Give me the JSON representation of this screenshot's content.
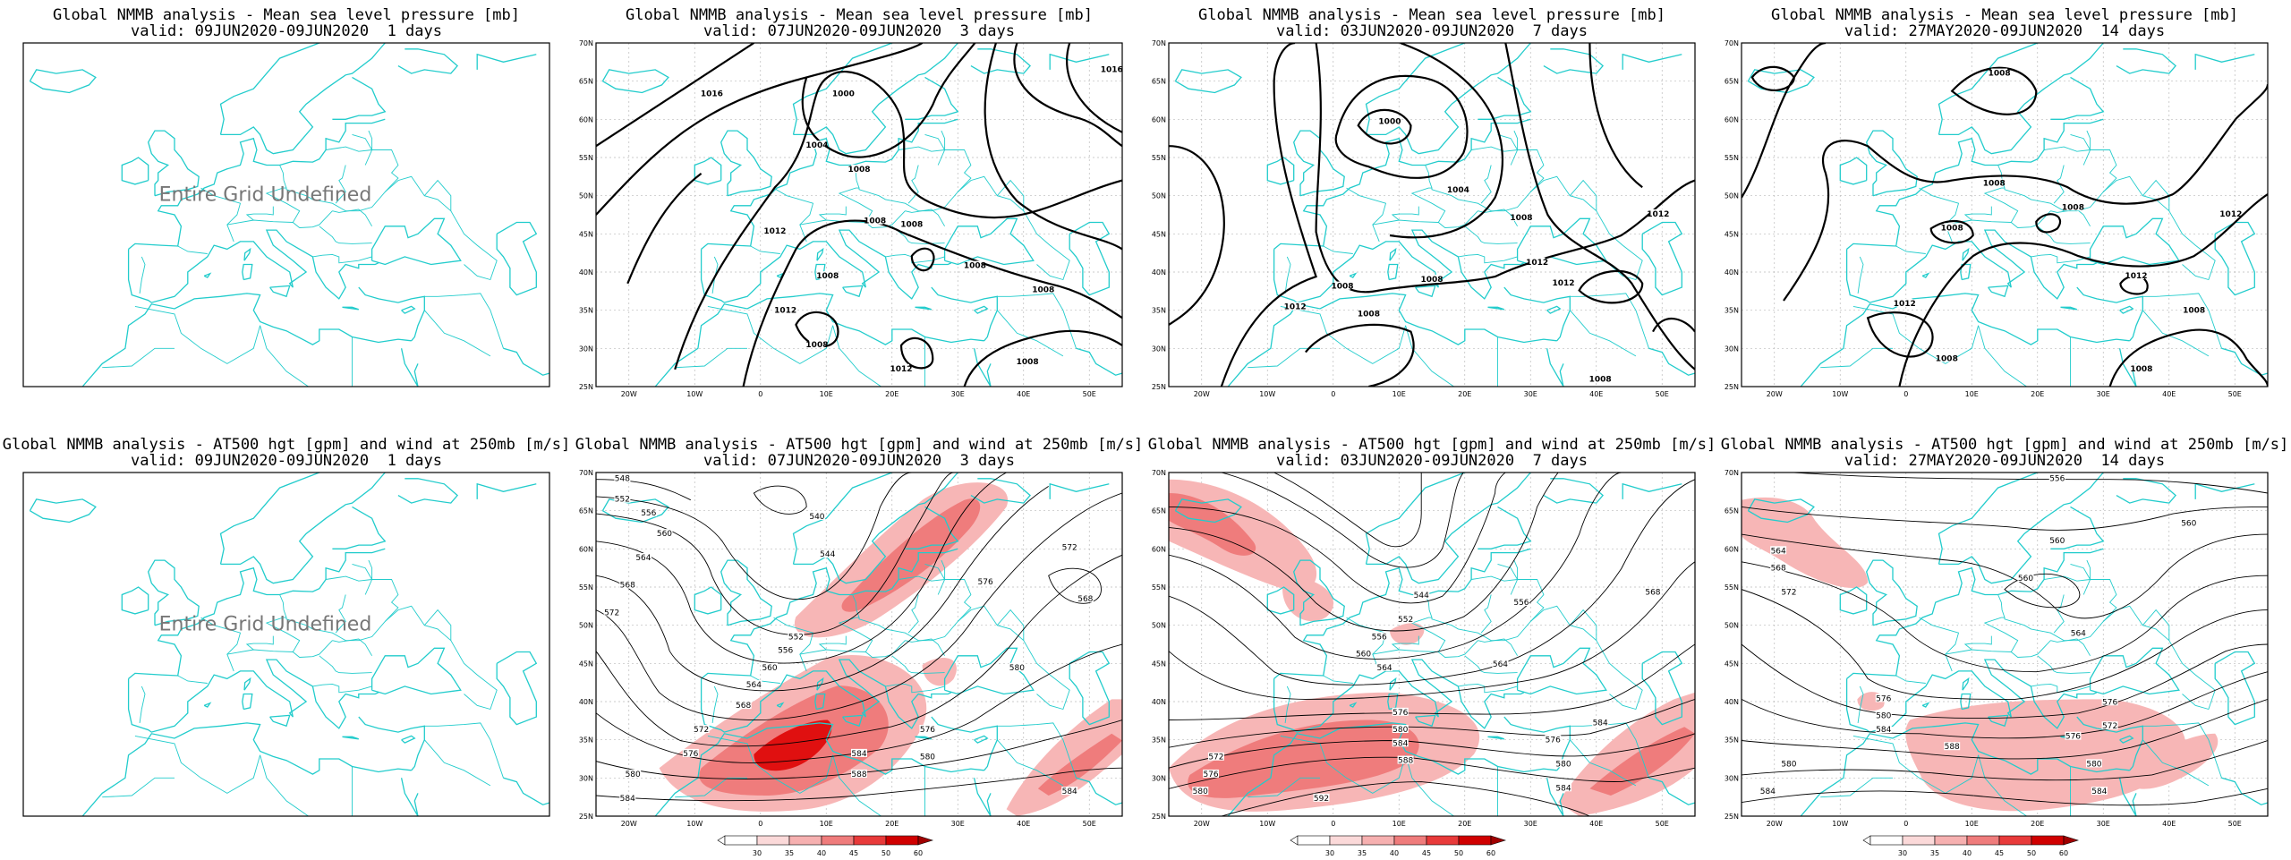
{
  "colors": {
    "coast": "#22cccc",
    "contour": "#000000",
    "wind_light": "#f7b6b6",
    "wind_mid": "#ef7c7c",
    "wind_strong": "#e01010"
  },
  "axes": {
    "lat_labels": [
      "70N",
      "65N",
      "60N",
      "55N",
      "50N",
      "45N",
      "40N",
      "35N",
      "30N",
      "25N"
    ],
    "lon_labels": [
      "20W",
      "10W",
      "0",
      "10E",
      "20E",
      "30E",
      "40E",
      "50E"
    ]
  },
  "undefined_text": "Entire Grid Undefined",
  "colorbar": {
    "ticks": [
      "30",
      "35",
      "40",
      "45",
      "50",
      "60"
    ]
  },
  "panels": [
    {
      "id": "mslp-1",
      "line1": "Global NMMB analysis - Mean sea level pressure [mb]",
      "line2": "valid: 09JUN2020-09JUN2020  1 days",
      "kind": "undefined"
    },
    {
      "id": "mslp-3",
      "line1": "Global NMMB analysis - Mean sea level pressure [mb]",
      "line2": "valid: 07JUN2020-09JUN2020  3 days",
      "kind": "mslp",
      "labels": [
        [
          "1016",
          0.22,
          0.15
        ],
        [
          "1000",
          0.47,
          0.15
        ],
        [
          "1004",
          0.42,
          0.3
        ],
        [
          "1008",
          0.5,
          0.37
        ],
        [
          "1012",
          0.34,
          0.55
        ],
        [
          "1008",
          0.53,
          0.52
        ],
        [
          "1008",
          0.6,
          0.53
        ],
        [
          "1008",
          0.72,
          0.65
        ],
        [
          "1008",
          0.44,
          0.68
        ],
        [
          "1012",
          0.36,
          0.78
        ],
        [
          "1008",
          0.42,
          0.88
        ],
        [
          "1012",
          0.58,
          0.95
        ],
        [
          "1008",
          0.82,
          0.93
        ],
        [
          "1008",
          0.85,
          0.72
        ],
        [
          "1016",
          0.98,
          0.08
        ]
      ]
    },
    {
      "id": "mslp-7",
      "line1": "Global NMMB analysis - Mean sea level pressure [mb]",
      "line2": "valid: 03JUN2020-09JUN2020  7 days",
      "kind": "mslp",
      "labels": [
        [
          "1000",
          0.42,
          0.23
        ],
        [
          "1004",
          0.55,
          0.43
        ],
        [
          "1008",
          0.67,
          0.51
        ],
        [
          "1012",
          0.93,
          0.5
        ],
        [
          "1012",
          0.7,
          0.64
        ],
        [
          "1012",
          0.75,
          0.7
        ],
        [
          "1008",
          0.33,
          0.71
        ],
        [
          "1008",
          0.5,
          0.69
        ],
        [
          "1012",
          0.24,
          0.77
        ],
        [
          "1008",
          0.38,
          0.79
        ],
        [
          "1008",
          0.82,
          0.98
        ]
      ]
    },
    {
      "id": "mslp-14",
      "line1": "Global NMMB analysis - Mean sea level pressure [mb]",
      "line2": "valid: 27MAY2020-09JUN2020  14 days",
      "kind": "mslp",
      "labels": [
        [
          "1008",
          0.49,
          0.09
        ],
        [
          "1008",
          0.48,
          0.41
        ],
        [
          "1008",
          0.4,
          0.54
        ],
        [
          "1008",
          0.63,
          0.48
        ],
        [
          "1012",
          0.93,
          0.5
        ],
        [
          "1012",
          0.75,
          0.68
        ],
        [
          "1012",
          0.31,
          0.76
        ],
        [
          "1008",
          0.86,
          0.78
        ],
        [
          "1008",
          0.39,
          0.92
        ],
        [
          "1008",
          0.76,
          0.95
        ]
      ]
    },
    {
      "id": "z500-1",
      "line1": "Global NMMB analysis - AT500 hgt [gpm] and wind at 250mb [m/s]",
      "line2": "valid: 09JUN2020-09JUN2020  1 days",
      "kind": "undefined"
    },
    {
      "id": "z500-3",
      "line1": "Global NMMB analysis - AT500 hgt [gpm] and wind at 250mb [m/s]",
      "line2": "valid: 07JUN2020-09JUN2020  3 days",
      "kind": "z500",
      "labels": [
        [
          "548",
          0.05,
          0.02
        ],
        [
          "552",
          0.05,
          0.08
        ],
        [
          "556",
          0.1,
          0.12
        ],
        [
          "560",
          0.13,
          0.18
        ],
        [
          "564",
          0.09,
          0.25
        ],
        [
          "568",
          0.06,
          0.33
        ],
        [
          "572",
          0.03,
          0.41
        ],
        [
          "540",
          0.42,
          0.13
        ],
        [
          "544",
          0.44,
          0.24
        ],
        [
          "552",
          0.38,
          0.48
        ],
        [
          "556",
          0.36,
          0.52
        ],
        [
          "560",
          0.33,
          0.57
        ],
        [
          "564",
          0.3,
          0.62
        ],
        [
          "568",
          0.28,
          0.68
        ],
        [
          "572",
          0.2,
          0.75
        ],
        [
          "576",
          0.18,
          0.82
        ],
        [
          "580",
          0.07,
          0.88
        ],
        [
          "584",
          0.06,
          0.95
        ],
        [
          "584",
          0.5,
          0.82
        ],
        [
          "588",
          0.5,
          0.88
        ],
        [
          "580",
          0.63,
          0.83
        ],
        [
          "576",
          0.63,
          0.75
        ],
        [
          "580",
          0.8,
          0.57
        ],
        [
          "576",
          0.74,
          0.32
        ],
        [
          "572",
          0.9,
          0.22
        ],
        [
          "568",
          0.93,
          0.37
        ],
        [
          "584",
          0.9,
          0.93
        ]
      ]
    },
    {
      "id": "z500-7",
      "line1": "Global NMMB analysis - AT500 hgt [gpm] and wind at 250mb [m/s]",
      "line2": "valid: 03JUN2020-09JUN2020  7 days",
      "kind": "z500",
      "labels": [
        [
          "544",
          0.48,
          0.36
        ],
        [
          "552",
          0.45,
          0.43
        ],
        [
          "556",
          0.4,
          0.48
        ],
        [
          "560",
          0.37,
          0.53
        ],
        [
          "564",
          0.41,
          0.57
        ],
        [
          "564",
          0.63,
          0.56
        ],
        [
          "556",
          0.67,
          0.38
        ],
        [
          "568",
          0.92,
          0.35
        ],
        [
          "572",
          0.09,
          0.83
        ],
        [
          "576",
          0.08,
          0.88
        ],
        [
          "580",
          0.06,
          0.93
        ],
        [
          "576",
          0.44,
          0.7
        ],
        [
          "580",
          0.44,
          0.75
        ],
        [
          "584",
          0.44,
          0.79
        ],
        [
          "588",
          0.45,
          0.84
        ],
        [
          "592",
          0.29,
          0.95
        ],
        [
          "576",
          0.73,
          0.78
        ],
        [
          "580",
          0.75,
          0.85
        ],
        [
          "584",
          0.75,
          0.92
        ],
        [
          "584",
          0.82,
          0.73
        ]
      ]
    },
    {
      "id": "z500-14",
      "line1": "Global NMMB analysis - AT500 hgt [gpm] and wind at 250mb [m/s]",
      "line2": "valid: 27MAY2020-09JUN2020  14 days",
      "kind": "z500",
      "labels": [
        [
          "556",
          0.6,
          0.02
        ],
        [
          "560",
          0.85,
          0.15
        ],
        [
          "560",
          0.6,
          0.2
        ],
        [
          "564",
          0.07,
          0.23
        ],
        [
          "568",
          0.07,
          0.28
        ],
        [
          "572",
          0.09,
          0.35
        ],
        [
          "560",
          0.54,
          0.31
        ],
        [
          "564",
          0.64,
          0.47
        ],
        [
          "576",
          0.27,
          0.66
        ],
        [
          "580",
          0.27,
          0.71
        ],
        [
          "584",
          0.27,
          0.75
        ],
        [
          "588",
          0.4,
          0.8
        ],
        [
          "580",
          0.09,
          0.85
        ],
        [
          "584",
          0.05,
          0.93
        ],
        [
          "576",
          0.7,
          0.67
        ],
        [
          "572",
          0.7,
          0.74
        ],
        [
          "580",
          0.67,
          0.85
        ],
        [
          "584",
          0.68,
          0.93
        ],
        [
          "576",
          0.63,
          0.77
        ]
      ]
    }
  ]
}
